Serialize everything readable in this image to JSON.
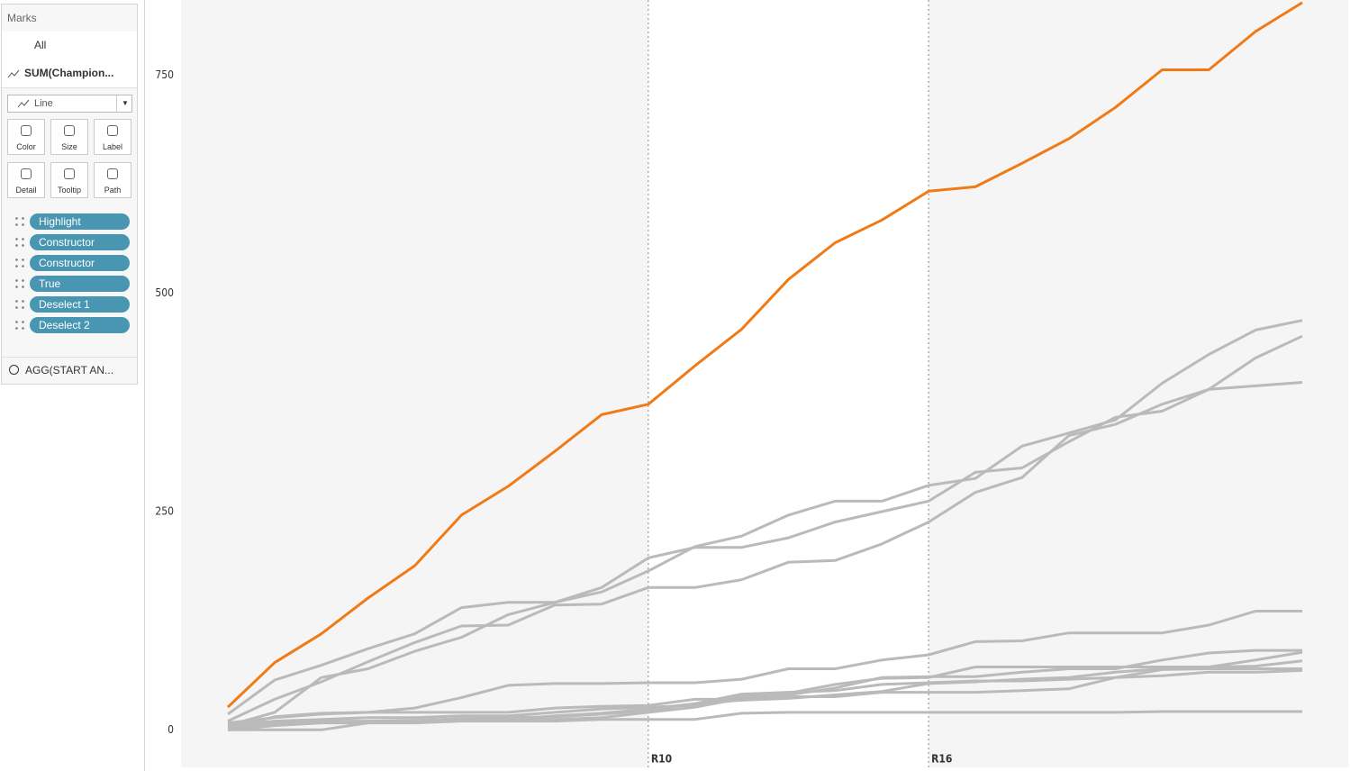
{
  "marks_panel": {
    "title": "Marks",
    "all": "All",
    "measure": "SUM(Champion...",
    "mark_type": "Line",
    "buttons": [
      "Color",
      "Size",
      "Label",
      "Detail",
      "Tooltip",
      "Path"
    ],
    "pills": [
      "Highlight",
      "Constructor",
      "Constructor",
      "True",
      "Deselect 1",
      "Deselect 2"
    ],
    "second_measure": "AGG(START AN..."
  },
  "chart_data": {
    "type": "line",
    "categories": [
      null,
      null,
      null,
      null,
      null,
      null,
      null,
      null,
      null,
      "R10",
      null,
      null,
      null,
      null,
      null,
      "R16",
      null,
      null,
      null,
      null,
      null,
      null,
      null,
      null
    ],
    "ylim": [
      -43,
      836
    ],
    "yticks": [
      0,
      250,
      500,
      750
    ],
    "grid": false,
    "series": [
      {
        "color": "#bababa",
        "values": [
          18,
          57,
          74,
          93,
          110,
          140,
          146,
          146,
          158,
          182,
          210,
          222,
          246,
          262,
          262,
          280,
          288,
          325,
          340,
          355,
          397,
          430,
          458,
          469
        ]
      },
      {
        "color": "#bababa",
        "values": [
          5,
          20,
          60,
          70,
          90,
          106,
          132,
          146,
          163,
          197,
          209,
          209,
          220,
          238,
          250,
          262,
          295,
          300,
          330,
          358,
          365,
          390,
          426,
          451
        ]
      },
      {
        "color": "#bababa",
        "values": [
          10,
          35,
          55,
          78,
          100,
          119,
          120,
          143,
          144,
          163,
          163,
          172,
          192,
          194,
          213,
          238,
          272,
          289,
          337,
          350,
          373,
          390,
          394,
          398
        ]
      },
      {
        "color": "#bababa",
        "values": [
          8,
          14,
          18,
          20,
          25,
          37,
          51,
          53,
          53,
          54,
          54,
          58,
          70,
          70,
          80,
          86,
          101,
          102,
          111,
          111,
          111,
          120,
          136,
          136
        ]
      },
      {
        "color": "#bababa",
        "values": [
          2,
          15,
          19,
          20,
          20,
          20,
          20,
          25,
          27,
          28,
          35,
          35,
          40,
          48,
          60,
          61,
          61,
          66,
          70,
          70,
          80,
          88,
          91,
          91
        ]
      },
      {
        "color": "#bababa",
        "values": [
          5,
          10,
          12,
          14,
          14,
          16,
          16,
          20,
          24,
          26,
          28,
          38,
          42,
          52,
          59,
          60,
          72,
          72,
          72,
          72,
          72,
          72,
          80,
          89
        ]
      },
      {
        "color": "#bababa",
        "values": [
          0,
          5,
          8,
          10,
          10,
          11,
          12,
          16,
          19,
          24,
          30,
          34,
          36,
          40,
          44,
          53,
          55,
          58,
          60,
          66,
          70,
          72,
          73,
          79
        ]
      },
      {
        "color": "#bababa",
        "values": [
          3,
          8,
          10,
          10,
          11,
          13,
          14,
          15,
          18,
          22,
          30,
          41,
          43,
          45,
          52,
          54,
          56,
          56,
          58,
          60,
          69,
          70,
          70,
          70
        ]
      },
      {
        "color": "#bababa",
        "values": [
          0,
          0,
          0,
          8,
          8,
          10,
          10,
          10,
          12,
          12,
          12,
          19,
          20,
          20,
          20,
          20,
          20,
          20,
          20,
          20,
          21,
          21,
          21,
          21
        ]
      },
      {
        "color": "#bababa",
        "values": [
          0,
          5,
          8,
          8,
          10,
          12,
          12,
          12,
          14,
          20,
          26,
          36,
          38,
          38,
          43,
          43,
          43,
          45,
          47,
          60,
          62,
          66,
          66,
          68
        ]
      },
      {
        "color": "#f07b16",
        "values": [
          26,
          77,
          110,
          151,
          188,
          246,
          279,
          319,
          361,
          373,
          417,
          459,
          516,
          558,
          584,
          617,
          622,
          649,
          677,
          713,
          756,
          756,
          800,
          833
        ]
      }
    ]
  }
}
